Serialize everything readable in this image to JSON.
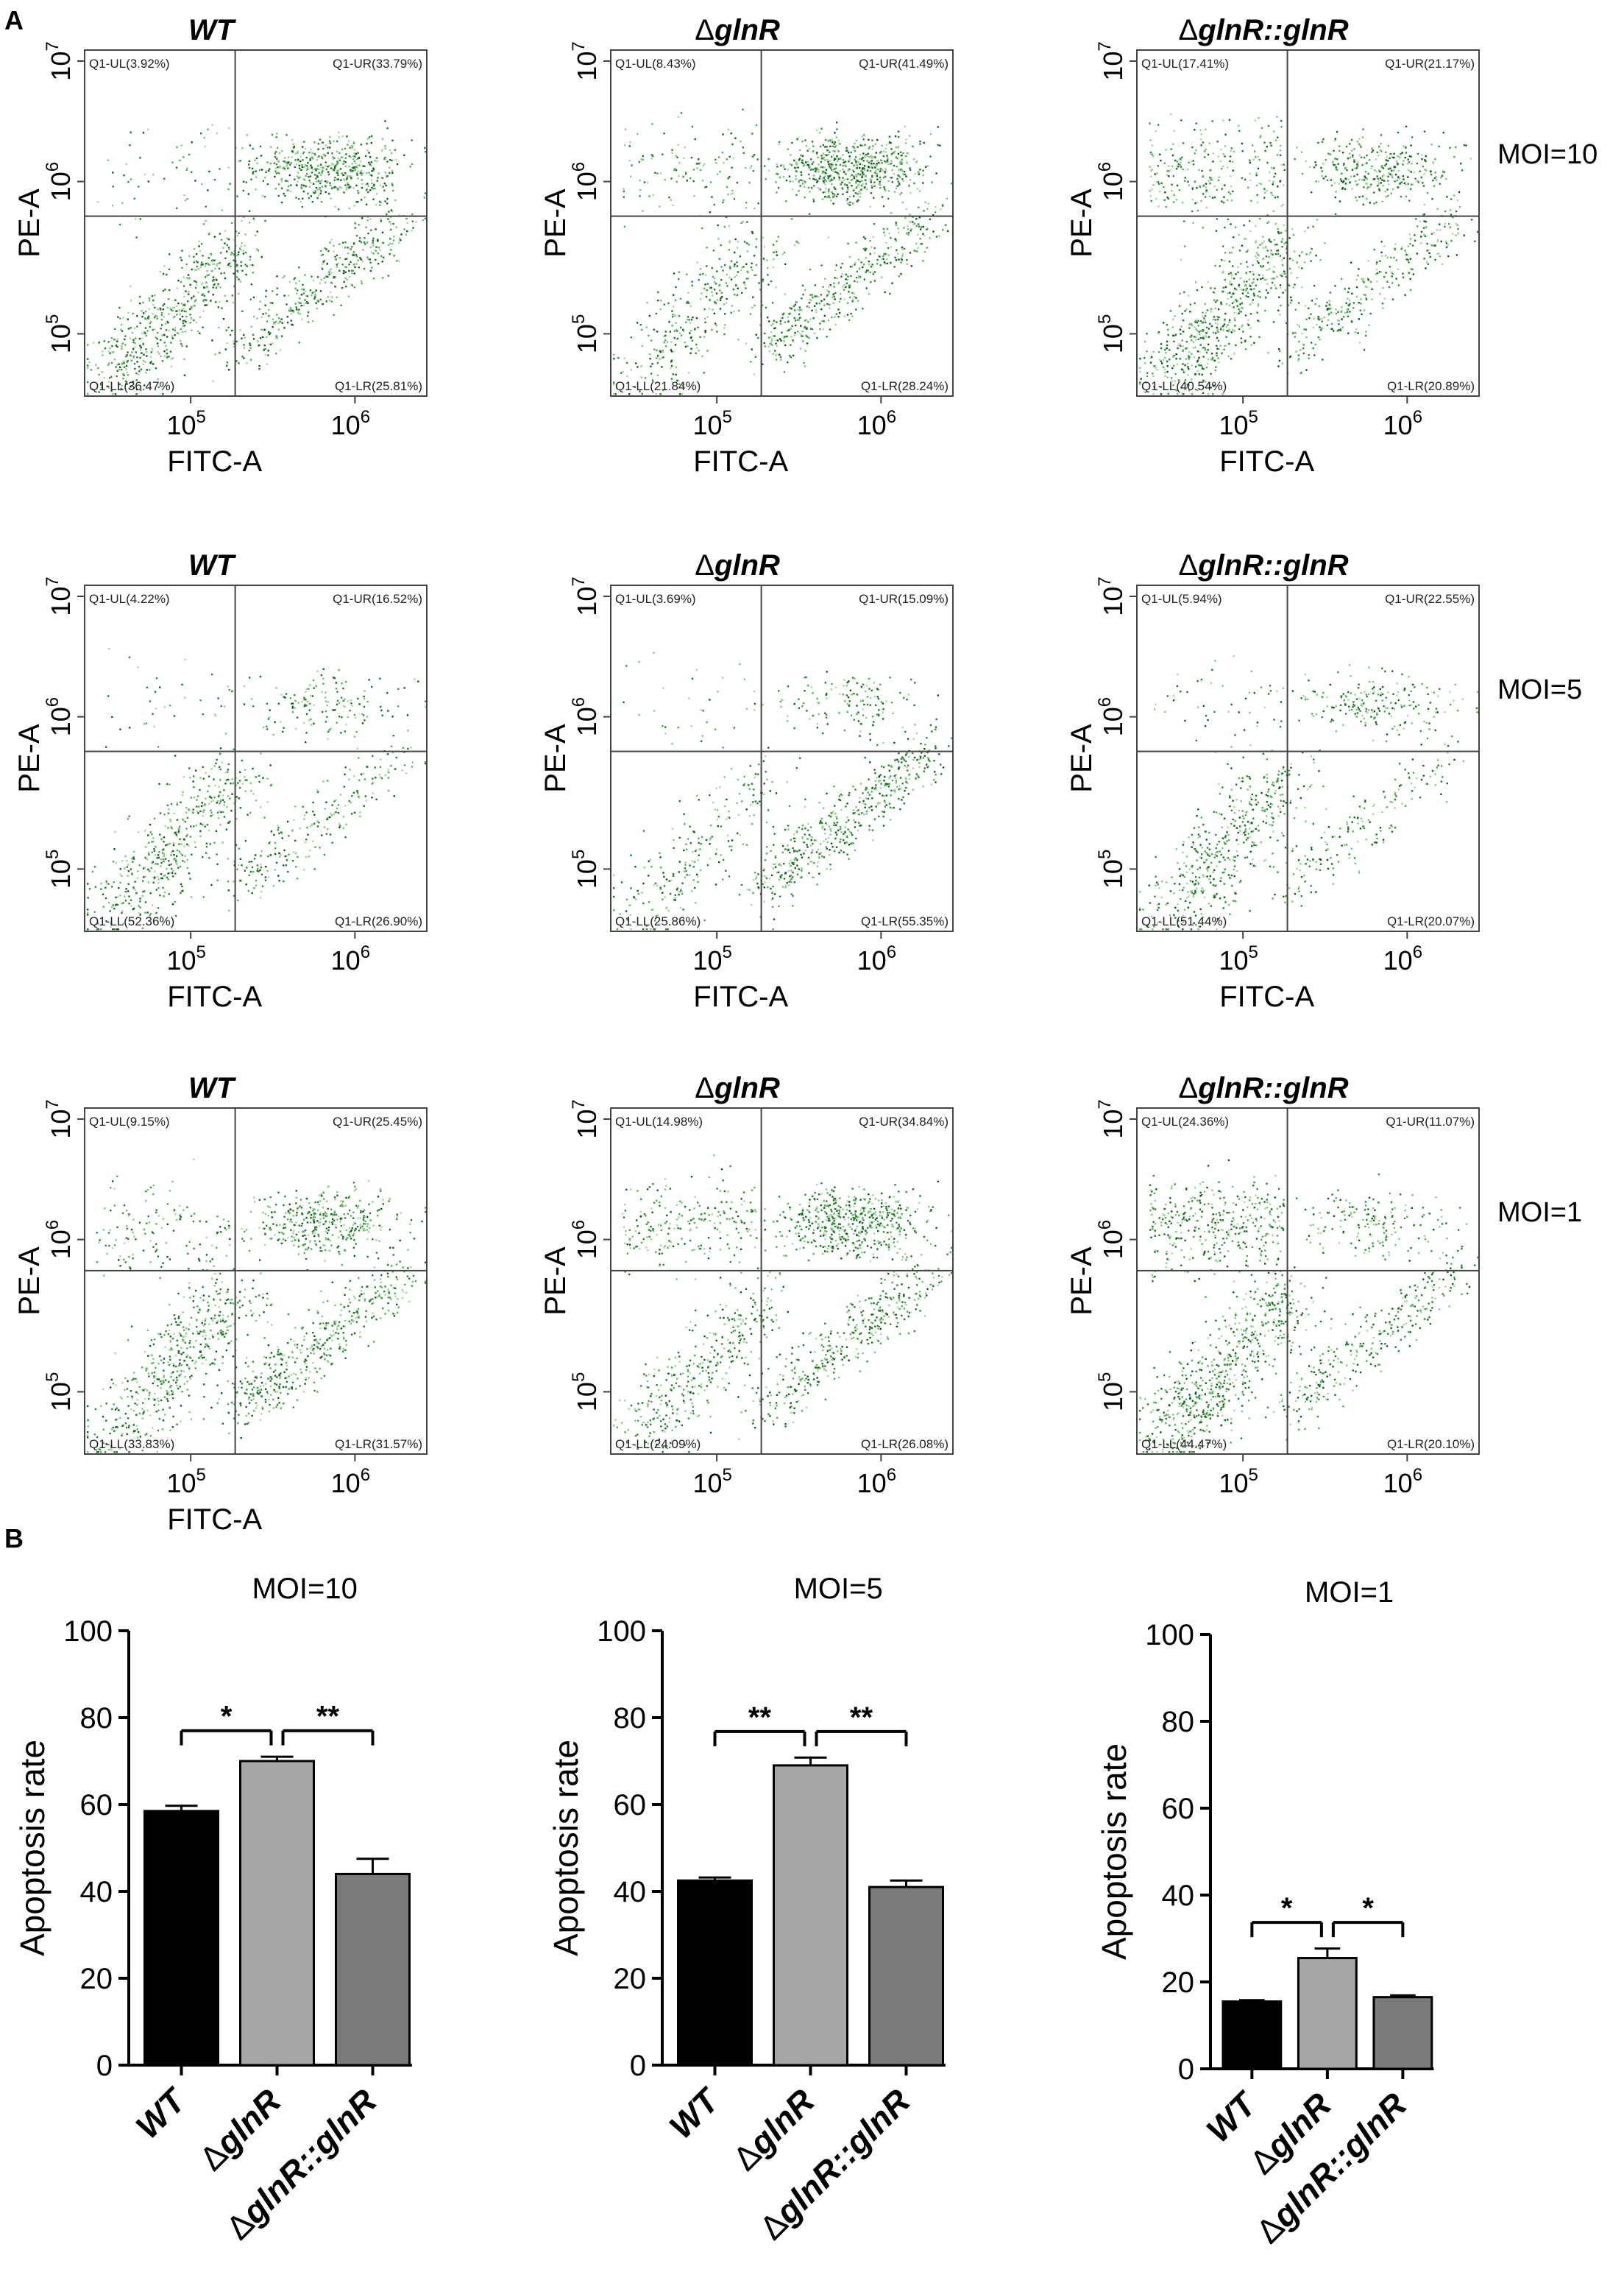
{
  "figure": {
    "panel_a_label": "A",
    "panel_b_label": "B"
  },
  "chart_data": [
    {
      "type": "scatter",
      "panel": "A",
      "moi": "MOI=10",
      "strain": "WT",
      "x_label": "FITC-A",
      "y_label": "PE-A",
      "x_ticks": [
        "10",
        "10"
      ],
      "x_tick_exps": [
        "5",
        "6"
      ],
      "y_ticks": [
        "10",
        "10",
        "10"
      ],
      "y_tick_exps": [
        "5",
        "6",
        "7"
      ],
      "quadrants": {
        "UL": "Q1-UL(3.92%)",
        "UR": "Q1-UR(33.79%)",
        "LL": "Q1-LL(36.47%)",
        "LR": "Q1-LR(25.81%)"
      },
      "pct": {
        "UL": 3.92,
        "UR": 33.79,
        "LL": 36.47,
        "LR": 25.81
      },
      "density": "high"
    },
    {
      "type": "scatter",
      "panel": "A",
      "moi": "MOI=10",
      "strain": "ΔglnR",
      "x_label": "FITC-A",
      "y_label": "PE-A",
      "x_ticks": [
        "10",
        "10"
      ],
      "x_tick_exps": [
        "5",
        "6"
      ],
      "y_ticks": [
        "10",
        "10",
        "10"
      ],
      "y_tick_exps": [
        "5",
        "6",
        "7"
      ],
      "quadrants": {
        "UL": "Q1-UL(8.43%)",
        "UR": "Q1-UR(41.49%)",
        "LL": "Q1-LL(21.84%)",
        "LR": "Q1-LR(28.24%)"
      },
      "pct": {
        "UL": 8.43,
        "UR": 41.49,
        "LL": 21.84,
        "LR": 28.24
      },
      "density": "high"
    },
    {
      "type": "scatter",
      "panel": "A",
      "moi": "MOI=10",
      "strain": "ΔglnR::glnR",
      "x_label": "FITC-A",
      "y_label": "PE-A",
      "x_ticks": [
        "10",
        "10"
      ],
      "x_tick_exps": [
        "5",
        "6"
      ],
      "y_ticks": [
        "10",
        "10",
        "10"
      ],
      "y_tick_exps": [
        "5",
        "6",
        "7"
      ],
      "quadrants": {
        "UL": "Q1-UL(17.41%)",
        "UR": "Q1-UR(21.17%)",
        "LL": "Q1-LL(40.54%)",
        "LR": "Q1-LR(20.89%)"
      },
      "pct": {
        "UL": 17.41,
        "UR": 21.17,
        "LL": 40.54,
        "LR": 20.89
      },
      "density": "high"
    },
    {
      "type": "scatter",
      "panel": "A",
      "moi": "MOI=5",
      "strain": "WT",
      "x_label": "FITC-A",
      "y_label": "PE-A",
      "x_ticks": [
        "10",
        "10"
      ],
      "x_tick_exps": [
        "5",
        "6"
      ],
      "y_ticks": [
        "10",
        "10",
        "10"
      ],
      "y_tick_exps": [
        "5",
        "6",
        "7"
      ],
      "quadrants": {
        "UL": "Q1-UL(4.22%)",
        "UR": "Q1-UR(16.52%)",
        "LL": "Q1-LL(52.36%)",
        "LR": "Q1-LR(26.90%)"
      },
      "pct": {
        "UL": 4.22,
        "UR": 16.52,
        "LL": 52.36,
        "LR": 26.9
      },
      "density": "low"
    },
    {
      "type": "scatter",
      "panel": "A",
      "moi": "MOI=5",
      "strain": "ΔglnR",
      "x_label": "FITC-A",
      "y_label": "PE-A",
      "x_ticks": [
        "10",
        "10"
      ],
      "x_tick_exps": [
        "5",
        "6"
      ],
      "y_ticks": [
        "10",
        "10",
        "10"
      ],
      "y_tick_exps": [
        "5",
        "6",
        "7"
      ],
      "quadrants": {
        "UL": "Q1-UL(3.69%)",
        "UR": "Q1-UR(15.09%)",
        "LL": "Q1-LL(25.86%)",
        "LR": "Q1-LR(55.35%)"
      },
      "pct": {
        "UL": 3.69,
        "UR": 15.09,
        "LL": 25.86,
        "LR": 55.35
      },
      "density": "low"
    },
    {
      "type": "scatter",
      "panel": "A",
      "moi": "MOI=5",
      "strain": "ΔglnR::glnR",
      "x_label": "FITC-A",
      "y_label": "PE-A",
      "x_ticks": [
        "10",
        "10"
      ],
      "x_tick_exps": [
        "5",
        "6"
      ],
      "y_ticks": [
        "10",
        "10",
        "10"
      ],
      "y_tick_exps": [
        "5",
        "6",
        "7"
      ],
      "quadrants": {
        "UL": "Q1-UL(5.94%)",
        "UR": "Q1-UR(22.55%)",
        "LL": "Q1-LL(51.44%)",
        "LR": "Q1-LR(20.07%)"
      },
      "pct": {
        "UL": 5.94,
        "UR": 22.55,
        "LL": 51.44,
        "LR": 20.07
      },
      "density": "low"
    },
    {
      "type": "scatter",
      "panel": "A",
      "moi": "MOI=1",
      "strain": "WT",
      "x_label": "FITC-A",
      "y_label": "PE-A",
      "x_ticks": [
        "10",
        "10"
      ],
      "x_tick_exps": [
        "5",
        "6"
      ],
      "y_ticks": [
        "10",
        "10",
        "10"
      ],
      "y_tick_exps": [
        "5",
        "6",
        "7"
      ],
      "quadrants": {
        "UL": "Q1-UL(9.15%)",
        "UR": "Q1-UR(25.45%)",
        "LL": "Q1-LL(33.83%)",
        "LR": "Q1-LR(31.57%)"
      },
      "pct": {
        "UL": 9.15,
        "UR": 25.45,
        "LL": 33.83,
        "LR": 31.57
      },
      "density": "high"
    },
    {
      "type": "scatter",
      "panel": "A",
      "moi": "MOI=1",
      "strain": "ΔglnR",
      "x_label": "",
      "y_label": "PE-A",
      "x_ticks": [
        "10",
        "10"
      ],
      "x_tick_exps": [
        "5",
        "6"
      ],
      "y_ticks": [
        "10",
        "10",
        "10"
      ],
      "y_tick_exps": [
        "5",
        "6",
        "7"
      ],
      "quadrants": {
        "UL": "Q1-UL(14.98%)",
        "UR": "Q1-UR(34.84%)",
        "LL": "Q1-LL(24.09%)",
        "LR": "Q1-LR(26.08%)"
      },
      "pct": {
        "UL": 14.98,
        "UR": 34.84,
        "LL": 24.09,
        "LR": 26.08
      },
      "density": "high"
    },
    {
      "type": "scatter",
      "panel": "A",
      "moi": "MOI=1",
      "strain": "ΔglnR::glnR",
      "x_label": "",
      "y_label": "PE-A",
      "x_ticks": [
        "10",
        "10"
      ],
      "x_tick_exps": [
        "5",
        "6"
      ],
      "y_ticks": [
        "10",
        "10",
        "10"
      ],
      "y_tick_exps": [
        "5",
        "6",
        "7"
      ],
      "quadrants": {
        "UL": "Q1-UL(24.36%)",
        "UR": "Q1-UR(11.07%)",
        "LL": "Q1-LL(44.47%)",
        "LR": "Q1-LR(20.10%)"
      },
      "pct": {
        "UL": 24.36,
        "UR": 11.07,
        "LL": 44.47,
        "LR": 20.1
      },
      "density": "high"
    },
    {
      "type": "bar",
      "panel": "B",
      "title": "MOI=10",
      "ylabel": "Apoptosis rate",
      "ylim": [
        0,
        100
      ],
      "yticks": [
        0,
        20,
        40,
        60,
        80,
        100
      ],
      "categories": [
        "WT",
        "ΔglnR",
        "ΔglnR::glnR"
      ],
      "values": [
        58.5,
        70,
        44
      ],
      "errors": [
        1.2,
        1,
        3.5
      ],
      "colors": [
        "#000000",
        "#a6a6a6",
        "#7a7a7a"
      ],
      "significance": [
        {
          "from": 0,
          "to": 1,
          "label": "*"
        },
        {
          "from": 1,
          "to": 2,
          "label": "**"
        }
      ]
    },
    {
      "type": "bar",
      "panel": "B",
      "title": "MOI=5",
      "ylabel": "Apoptosis rate",
      "ylim": [
        0,
        100
      ],
      "yticks": [
        0,
        20,
        40,
        60,
        80,
        100
      ],
      "categories": [
        "WT",
        "ΔglnR",
        "ΔglnR::glnR"
      ],
      "values": [
        42.5,
        69,
        41
      ],
      "errors": [
        0.7,
        1.8,
        1.5
      ],
      "colors": [
        "#000000",
        "#a6a6a6",
        "#7a7a7a"
      ],
      "significance": [
        {
          "from": 0,
          "to": 1,
          "label": "**"
        },
        {
          "from": 1,
          "to": 2,
          "label": "**"
        }
      ]
    },
    {
      "type": "bar",
      "panel": "B",
      "title": "MOI=1",
      "ylabel": "Apoptosis rate",
      "ylim": [
        0,
        100
      ],
      "yticks": [
        0,
        20,
        40,
        60,
        80,
        100
      ],
      "categories": [
        "WT",
        "ΔglnR",
        "ΔglnR::glnR"
      ],
      "values": [
        15.5,
        25.5,
        16.5
      ],
      "errors": [
        0.3,
        2.2,
        0.4
      ],
      "colors": [
        "#000000",
        "#a6a6a6",
        "#7a7a7a"
      ],
      "significance": [
        {
          "from": 0,
          "to": 1,
          "label": "*"
        },
        {
          "from": 1,
          "to": 2,
          "label": "*"
        }
      ]
    }
  ]
}
